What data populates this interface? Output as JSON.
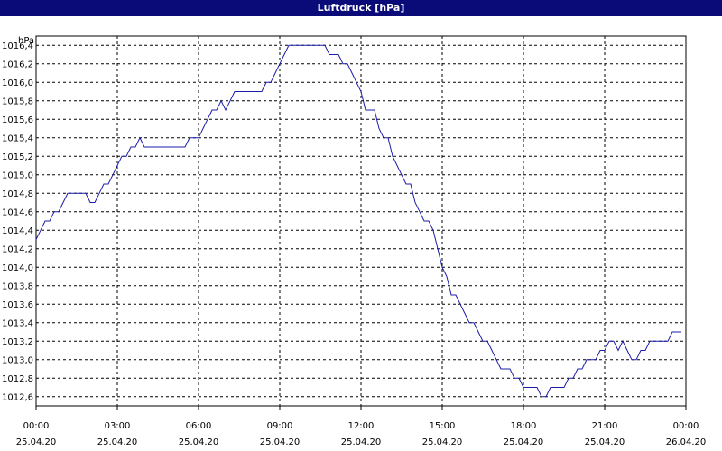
{
  "window": {
    "title": "Luftdruck [hPa]"
  },
  "colors": {
    "titlebar": "#0a0a78",
    "line": "#1c1ca8",
    "grid": "#000000"
  },
  "chart_data": {
    "type": "line",
    "title": "Luftdruck [hPa]",
    "ylabel": "hPa",
    "xlabel": "",
    "ylim": [
      1012.5,
      1016.5
    ],
    "xlim_hours": [
      0,
      24
    ],
    "grid": true,
    "y_ticks": [
      "1012,6",
      "1012,8",
      "1013,0",
      "1013,2",
      "1013,4",
      "1013,6",
      "1013,8",
      "1014,0",
      "1014,2",
      "1014,4",
      "1014,6",
      "1014,8",
      "1015,0",
      "1015,2",
      "1015,4",
      "1015,6",
      "1015,8",
      "1016,0",
      "1016,2",
      "1016,4"
    ],
    "x_ticks": [
      {
        "time": "00:00",
        "date": "25.04.20"
      },
      {
        "time": "03:00",
        "date": "25.04.20"
      },
      {
        "time": "06:00",
        "date": "25.04.20"
      },
      {
        "time": "09:00",
        "date": "25.04.20"
      },
      {
        "time": "12:00",
        "date": "25.04.20"
      },
      {
        "time": "15:00",
        "date": "25.04.20"
      },
      {
        "time": "18:00",
        "date": "25.04.20"
      },
      {
        "time": "21:00",
        "date": "25.04.20"
      },
      {
        "time": "00:00",
        "date": "26.04.20"
      }
    ],
    "series": [
      {
        "values": [
          [
            "25.04.20 00:00",
            1014.3
          ],
          [
            "25.04.20 00:10",
            1014.4
          ],
          [
            "25.04.20 00:20",
            1014.5
          ],
          [
            "25.04.20 00:30",
            1014.5
          ],
          [
            "25.04.20 00:40",
            1014.6
          ],
          [
            "25.04.20 00:50",
            1014.6
          ],
          [
            "25.04.20 01:00",
            1014.7
          ],
          [
            "25.04.20 01:10",
            1014.8
          ],
          [
            "25.04.20 01:50",
            1014.8
          ],
          [
            "25.04.20 02:00",
            1014.7
          ],
          [
            "25.04.20 02:10",
            1014.7
          ],
          [
            "25.04.20 02:20",
            1014.8
          ],
          [
            "25.04.20 02:30",
            1014.9
          ],
          [
            "25.04.20 02:40",
            1014.9
          ],
          [
            "25.04.20 02:50",
            1015.0
          ],
          [
            "25.04.20 03:00",
            1015.1
          ],
          [
            "25.04.20 03:10",
            1015.2
          ],
          [
            "25.04.20 03:20",
            1015.2
          ],
          [
            "25.04.20 03:30",
            1015.3
          ],
          [
            "25.04.20 03:40",
            1015.3
          ],
          [
            "25.04.20 03:50",
            1015.4
          ],
          [
            "25.04.20 04:00",
            1015.3
          ],
          [
            "25.04.20 05:30",
            1015.3
          ],
          [
            "25.04.20 05:40",
            1015.4
          ],
          [
            "25.04.20 06:00",
            1015.4
          ],
          [
            "25.04.20 06:10",
            1015.5
          ],
          [
            "25.04.20 06:20",
            1015.6
          ],
          [
            "25.04.20 06:30",
            1015.7
          ],
          [
            "25.04.20 06:40",
            1015.7
          ],
          [
            "25.04.20 06:50",
            1015.8
          ],
          [
            "25.04.20 07:00",
            1015.7
          ],
          [
            "25.04.20 07:10",
            1015.8
          ],
          [
            "25.04.20 07:20",
            1015.9
          ],
          [
            "25.04.20 08:20",
            1015.9
          ],
          [
            "25.04.20 08:30",
            1016.0
          ],
          [
            "25.04.20 08:40",
            1016.0
          ],
          [
            "25.04.20 08:50",
            1016.1
          ],
          [
            "25.04.20 09:00",
            1016.2
          ],
          [
            "25.04.20 09:10",
            1016.3
          ],
          [
            "25.04.20 09:20",
            1016.4
          ],
          [
            "25.04.20 10:40",
            1016.4
          ],
          [
            "25.04.20 10:50",
            1016.3
          ],
          [
            "25.04.20 11:10",
            1016.3
          ],
          [
            "25.04.20 11:20",
            1016.2
          ],
          [
            "25.04.20 11:30",
            1016.2
          ],
          [
            "25.04.20 11:40",
            1016.1
          ],
          [
            "25.04.20 11:50",
            1016.0
          ],
          [
            "25.04.20 12:00",
            1015.9
          ],
          [
            "25.04.20 12:10",
            1015.7
          ],
          [
            "25.04.20 12:30",
            1015.7
          ],
          [
            "25.04.20 12:40",
            1015.5
          ],
          [
            "25.04.20 12:50",
            1015.4
          ],
          [
            "25.04.20 13:00",
            1015.4
          ],
          [
            "25.04.20 13:10",
            1015.2
          ],
          [
            "25.04.20 13:20",
            1015.1
          ],
          [
            "25.04.20 13:30",
            1015.0
          ],
          [
            "25.04.20 13:40",
            1014.9
          ],
          [
            "25.04.20 13:50",
            1014.9
          ],
          [
            "25.04.20 14:00",
            1014.7
          ],
          [
            "25.04.20 14:10",
            1014.6
          ],
          [
            "25.04.20 14:20",
            1014.5
          ],
          [
            "25.04.20 14:30",
            1014.5
          ],
          [
            "25.04.20 14:40",
            1014.4
          ],
          [
            "25.04.20 14:50",
            1014.2
          ],
          [
            "25.04.20 15:00",
            1014.0
          ],
          [
            "25.04.20 15:10",
            1013.9
          ],
          [
            "25.04.20 15:20",
            1013.7
          ],
          [
            "25.04.20 15:30",
            1013.7
          ],
          [
            "25.04.20 15:40",
            1013.6
          ],
          [
            "25.04.20 15:50",
            1013.5
          ],
          [
            "25.04.20 16:00",
            1013.4
          ],
          [
            "25.04.20 16:10",
            1013.4
          ],
          [
            "25.04.20 16:20",
            1013.3
          ],
          [
            "25.04.20 16:30",
            1013.2
          ],
          [
            "25.04.20 16:40",
            1013.2
          ],
          [
            "25.04.20 16:50",
            1013.1
          ],
          [
            "25.04.20 17:00",
            1013.0
          ],
          [
            "25.04.20 17:10",
            1012.9
          ],
          [
            "25.04.20 17:30",
            1012.9
          ],
          [
            "25.04.20 17:40",
            1012.8
          ],
          [
            "25.04.20 17:50",
            1012.8
          ],
          [
            "25.04.20 18:00",
            1012.7
          ],
          [
            "25.04.20 18:30",
            1012.7
          ],
          [
            "25.04.20 18:40",
            1012.6
          ],
          [
            "25.04.20 18:50",
            1012.6
          ],
          [
            "25.04.20 19:00",
            1012.7
          ],
          [
            "25.04.20 19:30",
            1012.7
          ],
          [
            "25.04.20 19:40",
            1012.8
          ],
          [
            "25.04.20 19:50",
            1012.8
          ],
          [
            "25.04.20 20:00",
            1012.9
          ],
          [
            "25.04.20 20:10",
            1012.9
          ],
          [
            "25.04.20 20:20",
            1013.0
          ],
          [
            "25.04.20 20:40",
            1013.0
          ],
          [
            "25.04.20 20:50",
            1013.1
          ],
          [
            "25.04.20 21:00",
            1013.1
          ],
          [
            "25.04.20 21:10",
            1013.2
          ],
          [
            "25.04.20 21:20",
            1013.2
          ],
          [
            "25.04.20 21:30",
            1013.1
          ],
          [
            "25.04.20 21:40",
            1013.2
          ],
          [
            "25.04.20 21:50",
            1013.1
          ],
          [
            "25.04.20 22:00",
            1013.0
          ],
          [
            "25.04.20 22:10",
            1013.0
          ],
          [
            "25.04.20 22:20",
            1013.1
          ],
          [
            "25.04.20 22:30",
            1013.1
          ],
          [
            "25.04.20 22:40",
            1013.2
          ],
          [
            "25.04.20 23:20",
            1013.2
          ],
          [
            "25.04.20 23:30",
            1013.3
          ],
          [
            "25.04.20 23:50",
            1013.3
          ]
        ]
      }
    ]
  }
}
